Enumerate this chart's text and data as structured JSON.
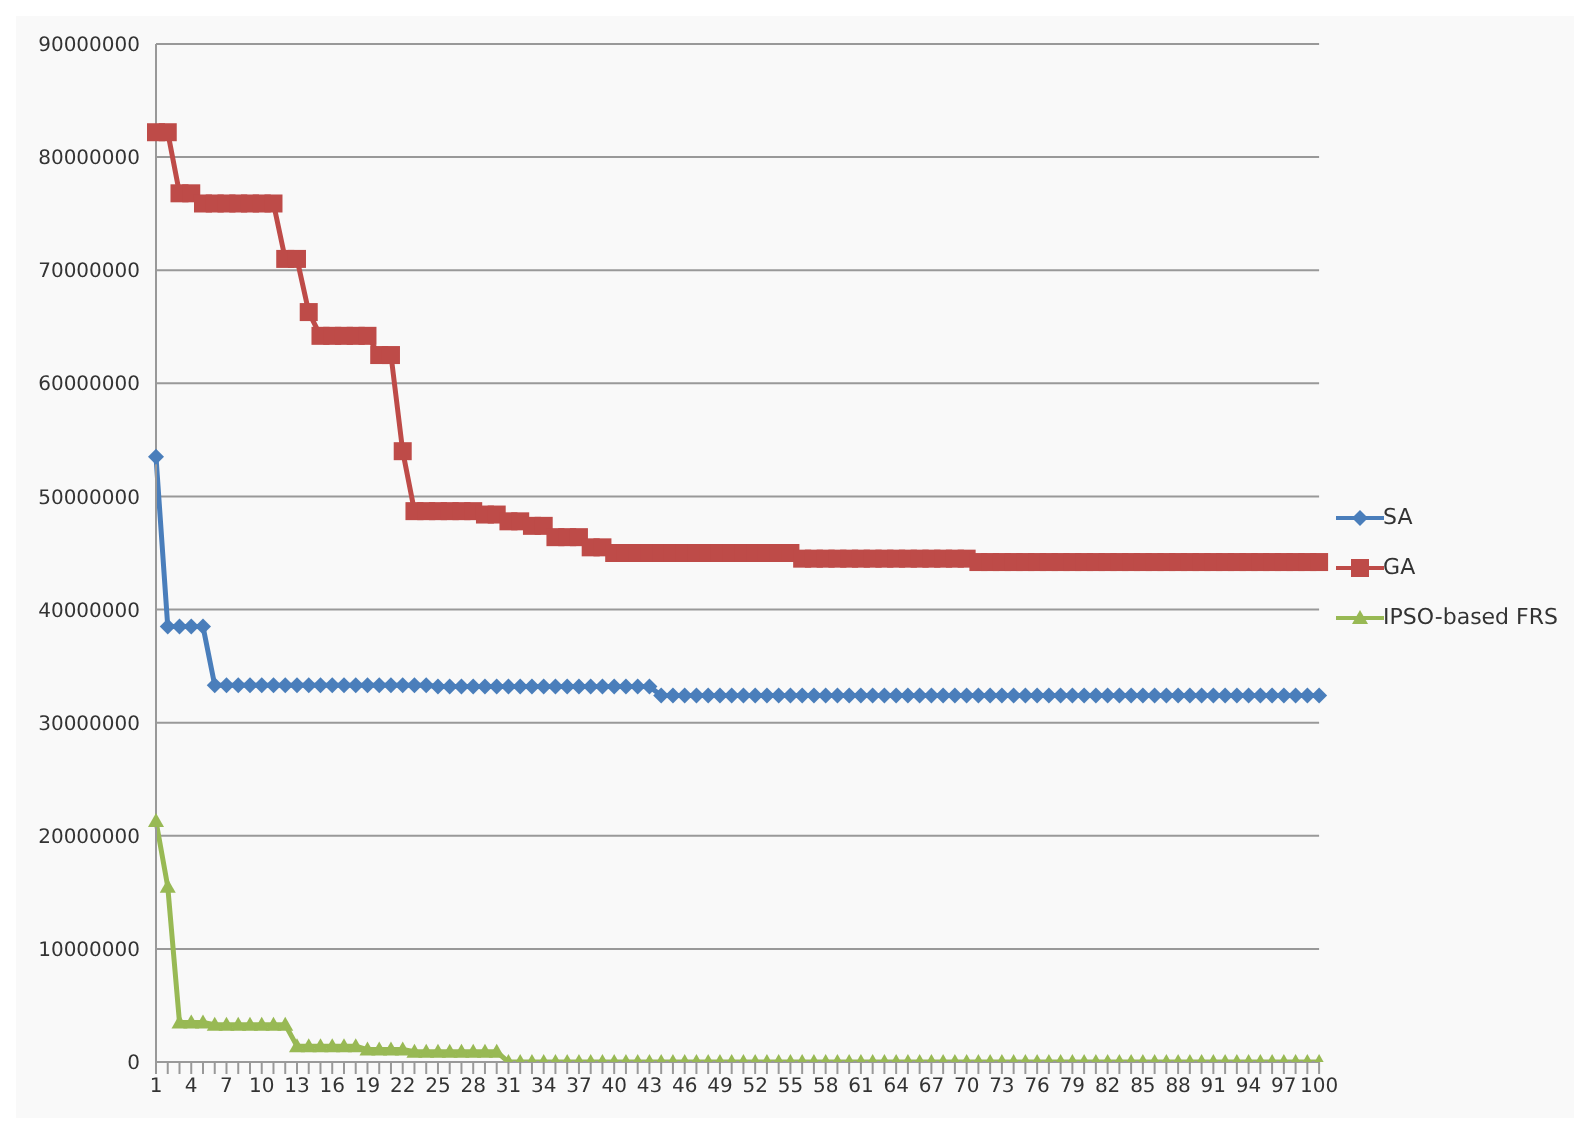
{
  "chart_data": {
    "type": "line",
    "categories": [
      "1",
      null,
      null,
      "4",
      null,
      null,
      "7",
      null,
      null,
      "10",
      null,
      null,
      "13",
      null,
      null,
      "16",
      null,
      null,
      "19",
      null,
      null,
      "22",
      null,
      null,
      "25",
      null,
      null,
      "28",
      null,
      null,
      "31",
      null,
      null,
      "34",
      null,
      null,
      "37",
      null,
      null,
      "40",
      null,
      null,
      "43",
      null,
      null,
      "46",
      null,
      null,
      "49",
      null,
      null,
      "52",
      null,
      null,
      "55",
      null,
      null,
      "58",
      null,
      null,
      "61",
      null,
      null,
      "64",
      null,
      null,
      "67",
      null,
      null,
      "70",
      null,
      null,
      "73",
      null,
      null,
      "76",
      null,
      null,
      "79",
      null,
      null,
      "82",
      null,
      null,
      "85",
      null,
      null,
      "88",
      null,
      null,
      "91",
      null,
      null,
      "94",
      null,
      null,
      "97",
      null,
      null,
      "100"
    ],
    "series": [
      {
        "name": "SA",
        "color": "#4a7ebb",
        "marker": "diamond",
        "values": [
          53500000,
          38500000,
          38500000,
          38500000,
          38500000,
          33300000,
          33300000,
          33300000,
          33300000,
          33300000,
          33300000,
          33300000,
          33300000,
          33300000,
          33300000,
          33300000,
          33300000,
          33300000,
          33300000,
          33300000,
          33300000,
          33300000,
          33300000,
          33300000,
          33200000,
          33200000,
          33200000,
          33200000,
          33200000,
          33200000,
          33200000,
          33200000,
          33200000,
          33200000,
          33200000,
          33200000,
          33200000,
          33200000,
          33200000,
          33200000,
          33200000,
          33200000,
          33200000,
          32400000,
          32400000,
          32400000,
          32400000,
          32400000,
          32400000,
          32400000,
          32400000,
          32400000,
          32400000,
          32400000,
          32400000,
          32400000,
          32400000,
          32400000,
          32400000,
          32400000,
          32400000,
          32400000,
          32400000,
          32400000,
          32400000,
          32400000,
          32400000,
          32400000,
          32400000,
          32400000,
          32400000,
          32400000,
          32400000,
          32400000,
          32400000,
          32400000,
          32400000,
          32400000,
          32400000,
          32400000,
          32400000,
          32400000,
          32400000,
          32400000,
          32400000,
          32400000,
          32400000,
          32400000,
          32400000,
          32400000,
          32400000,
          32400000,
          32400000,
          32400000,
          32400000,
          32400000,
          32400000,
          32400000,
          32400000,
          32400000
        ]
      },
      {
        "name": "GA",
        "color": "#be4b48",
        "marker": "square",
        "values": [
          82200000,
          82200000,
          76800000,
          76800000,
          75900000,
          75900000,
          75900000,
          75900000,
          75900000,
          75900000,
          75900000,
          71000000,
          71000000,
          66300000,
          64200000,
          64200000,
          64200000,
          64200000,
          64200000,
          62500000,
          62500000,
          54000000,
          48700000,
          48700000,
          48700000,
          48700000,
          48700000,
          48700000,
          48400000,
          48400000,
          47800000,
          47800000,
          47400000,
          47400000,
          46400000,
          46400000,
          46400000,
          45500000,
          45500000,
          45000000,
          45000000,
          45000000,
          45000000,
          45000000,
          45000000,
          45000000,
          45000000,
          45000000,
          45000000,
          45000000,
          45000000,
          45000000,
          45000000,
          45000000,
          45000000,
          44500000,
          44500000,
          44500000,
          44500000,
          44500000,
          44500000,
          44500000,
          44500000,
          44500000,
          44500000,
          44500000,
          44500000,
          44500000,
          44500000,
          44500000,
          44200000,
          44200000,
          44200000,
          44200000,
          44200000,
          44200000,
          44200000,
          44200000,
          44200000,
          44200000,
          44200000,
          44200000,
          44200000,
          44200000,
          44200000,
          44200000,
          44200000,
          44200000,
          44200000,
          44200000,
          44200000,
          44200000,
          44200000,
          44200000,
          44200000,
          44200000,
          44200000,
          44200000,
          44200000,
          44200000
        ]
      },
      {
        "name": "IPSO-based FRS",
        "color": "#98b954",
        "marker": "triangle",
        "values": [
          21300000,
          15500000,
          3500000,
          3500000,
          3500000,
          3300000,
          3300000,
          3300000,
          3300000,
          3300000,
          3300000,
          3300000,
          1400000,
          1400000,
          1400000,
          1400000,
          1400000,
          1400000,
          1100000,
          1100000,
          1100000,
          1100000,
          900000,
          900000,
          900000,
          900000,
          900000,
          900000,
          900000,
          900000,
          0,
          0,
          0,
          0,
          0,
          0,
          0,
          0,
          0,
          0,
          0,
          0,
          0,
          0,
          0,
          0,
          0,
          0,
          0,
          0,
          0,
          0,
          0,
          0,
          0,
          0,
          0,
          0,
          0,
          0,
          0,
          0,
          0,
          0,
          0,
          0,
          0,
          0,
          0,
          0,
          0,
          0,
          0,
          0,
          0,
          0,
          0,
          0,
          0,
          0,
          0,
          0,
          0,
          0,
          0,
          0,
          0,
          0,
          0,
          0,
          0,
          0,
          0,
          0,
          0,
          0,
          0,
          0,
          0,
          0
        ]
      }
    ],
    "ylim": [
      0,
      90000000
    ],
    "yticks": [
      0,
      10000000,
      20000000,
      30000000,
      40000000,
      50000000,
      60000000,
      70000000,
      80000000,
      90000000
    ],
    "grid": "y",
    "legend": "right"
  }
}
